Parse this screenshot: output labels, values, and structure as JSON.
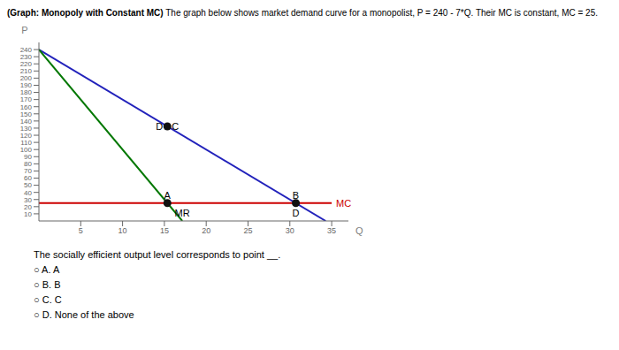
{
  "chart_data": {
    "type": "line",
    "title": "(Graph: Monopoly with Constant MC)",
    "subtitle": " The graph below shows market demand curve for a monopolist, P = 240 - 7*Q. Their MC is constant, MC = 25.",
    "x_label": "Q",
    "y_label": "P",
    "xlim": [
      0,
      37
    ],
    "ylim": [
      0,
      250
    ],
    "xticks": [
      5,
      10,
      15,
      20,
      25,
      30,
      35
    ],
    "yticks": [
      10,
      20,
      30,
      40,
      50,
      60,
      70,
      80,
      90,
      100,
      110,
      120,
      130,
      140,
      150,
      160,
      170,
      180,
      190,
      200,
      210,
      220,
      230,
      240
    ],
    "grid": false,
    "series": [
      {
        "type": "line",
        "color": "#2222bb",
        "x": [
          0,
          34.285714285714285
        ],
        "values": [
          240,
          0
        ]
      },
      {
        "type": "line",
        "color": "#007700",
        "x": [
          0,
          17.142857142857142
        ],
        "values": [
          240,
          0
        ]
      },
      {
        "type": "line",
        "color": "#cc0000",
        "x": [
          0,
          35
        ],
        "values": [
          25,
          25
        ]
      },
      {
        "type": "scatter",
        "color": "#111111",
        "x": [
          15.357142857142858,
          30.714285714285715,
          15.357142857142858
        ],
        "values": [
          25,
          25,
          132.5
        ]
      }
    ],
    "annotations": [
      {
        "text": "A",
        "x": 15.357142857142858,
        "y": 25,
        "position": "top"
      },
      {
        "text": "B",
        "x": 30.714285714285715,
        "y": 25,
        "position": "top"
      },
      {
        "text": "C",
        "x": 15.357142857142858,
        "y": 132.5,
        "position": "right"
      },
      {
        "text": "D",
        "x": 15.357142857142858,
        "y": 132.5,
        "position": "left"
      },
      {
        "text": "D",
        "x": 30.714285714285715,
        "y": 0,
        "position": "top"
      },
      {
        "text": "MR",
        "x": 17.142857142857142,
        "y": 0,
        "position": "top"
      },
      {
        "text": "MC",
        "x": 35,
        "y": 25,
        "position": "right",
        "color": "#cc0000"
      },
      {
        "text": "The socially efficient output level corresponds to point __."
      },
      {
        "text": "○ A. A"
      },
      {
        "text": "○ B. B"
      },
      {
        "text": "○ C. C"
      },
      {
        "text": "○ D. None of the above"
      }
    ]
  }
}
